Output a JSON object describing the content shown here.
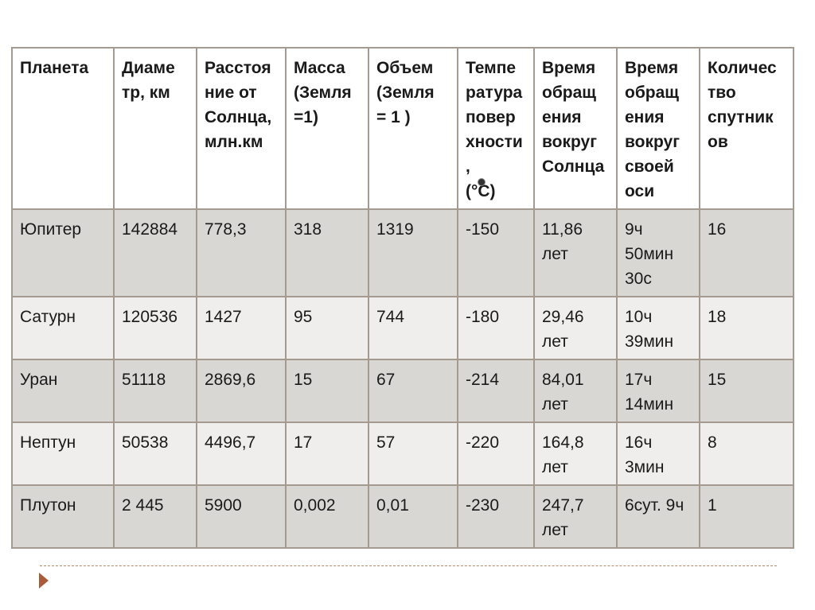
{
  "table": {
    "headers": [
      "Планета",
      "Диаме\nтр, км",
      "Расстоя\nние от\nСолнца,\nмлн.км",
      "Масса\n(Земля\n=1)",
      "Объем\n(Земля\n= 1 )",
      "Темпе\nратура\nповер\nхности\n,\n (°C)",
      "Время\nобращ\nения\nвокруг\nСолнца",
      "Время\nобращ\nения\nвокруг\nсвоей\nоси",
      "Количес\nтво\nспутник\nов"
    ],
    "rows": [
      [
        "Юпитер",
        "142884",
        "778,3",
        "318",
        "1319",
        "-150",
        "11,86\nлет",
        "9ч\n50мин\n30с",
        "16"
      ],
      [
        "Сатурн",
        "120536",
        "1427",
        "95",
        "744",
        "-180",
        "29,46\nлет",
        "10ч\n39мин",
        "18"
      ],
      [
        "Уран",
        "51118",
        "2869,6",
        "15",
        "67",
        "-214",
        "84,01\nлет",
        "17ч\n14мин",
        "15"
      ],
      [
        "Нептун",
        "50538",
        "4496,7",
        "17",
        "57",
        "-220",
        "164,8\nлет",
        "16ч\n3мин",
        "8"
      ],
      [
        "Плутон",
        "2 445",
        "5900",
        "0,002",
        "0,01",
        "-230",
        "247,7\nлет",
        "6сут. 9ч",
        "1"
      ]
    ]
  },
  "colors": {
    "border": "#a49a90",
    "row_odd": "#d9d7d4",
    "row_even": "#efeeec",
    "accent": "#a85c3c"
  },
  "icons": {
    "footer_arrow": "play-triangle-icon"
  }
}
